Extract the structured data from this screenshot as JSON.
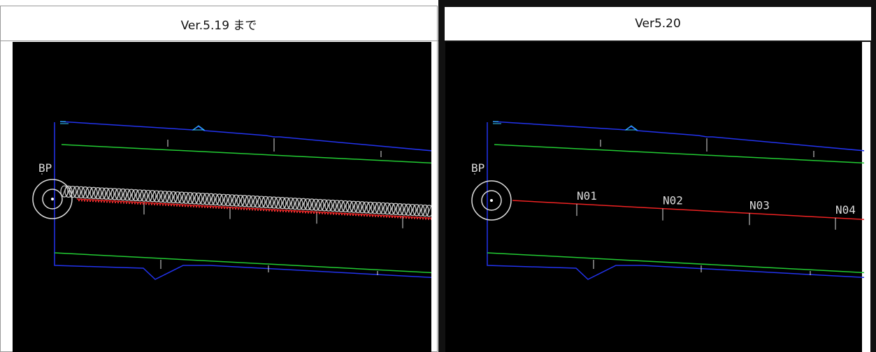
{
  "panels": [
    {
      "header": "Ver.5.19 まで",
      "labels": [
        "BP"
      ]
    },
    {
      "header": "Ver5.20",
      "labels": [
        "BP",
        "N01",
        "N02",
        "N03",
        "N04"
      ]
    }
  ]
}
